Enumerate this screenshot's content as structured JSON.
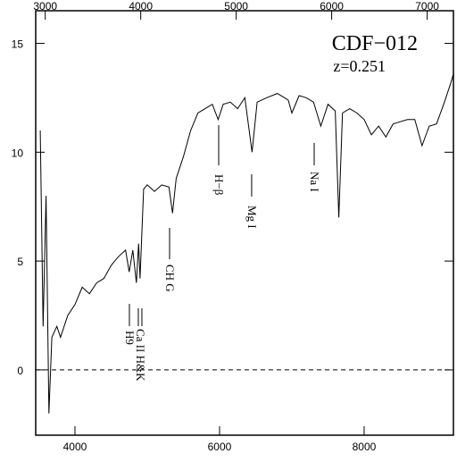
{
  "chart_data": {
    "type": "line",
    "title": "CDF−012",
    "subtitle": "z=0.251",
    "x": [
      3520,
      3560,
      3600,
      3640,
      3680,
      3750,
      3800,
      3900,
      4000,
      4100,
      4200,
      4300,
      4400,
      4500,
      4600,
      4700,
      4750,
      4800,
      4850,
      4880,
      4900,
      4950,
      5000,
      5100,
      5200,
      5300,
      5350,
      5400,
      5500,
      5600,
      5700,
      5800,
      5900,
      5980,
      6050,
      6150,
      6250,
      6350,
      6450,
      6520,
      6650,
      6800,
      6950,
      7000,
      7100,
      7200,
      7300,
      7400,
      7500,
      7600,
      7650,
      7700,
      7800,
      7900,
      8000,
      8100,
      8200,
      8300,
      8400,
      8500,
      8600,
      8700,
      8800,
      8900,
      9000,
      9100,
      9200,
      9235
    ],
    "series": [
      {
        "color": "#000000",
        "values": [
          11,
          2,
          8,
          -2,
          1.5,
          2,
          1.5,
          2.5,
          3,
          3.8,
          3.5,
          4,
          4.2,
          4.8,
          5.2,
          5.5,
          4.5,
          5.5,
          4,
          5.8,
          4.2,
          8.3,
          8.5,
          8.2,
          8.5,
          8.4,
          7.2,
          8.8,
          9.8,
          11,
          11.8,
          12,
          12.2,
          11.5,
          12.2,
          12.3,
          12,
          12.5,
          10,
          12.3,
          12.5,
          12.7,
          12.4,
          11.8,
          12.6,
          12.5,
          12.3,
          11.2,
          12.2,
          11.9,
          7,
          11.8,
          12,
          11.8,
          11.5,
          10.8,
          11.2,
          10.7,
          11.3,
          11.4,
          11.5,
          11.5,
          10.3,
          11.2,
          11.3,
          12.2,
          13.2,
          13.6
        ]
      }
    ],
    "xlim": [
      3457,
      9235
    ],
    "xticks": [
      4000,
      6000,
      8000
    ],
    "x2lim": [
      2900,
      7275
    ],
    "x2ticks": [
      3000,
      4000,
      5000,
      6000,
      7000
    ],
    "ylim": [
      -3,
      16.5
    ],
    "yticks": [
      0,
      5,
      10,
      15
    ],
    "reference_line": 0,
    "annotations": [
      {
        "text": "H9",
        "x": 4753
      },
      {
        "text": "Ca II H&K",
        "x": 4901
      },
      {
        "text": "CH G",
        "x": 5309
      },
      {
        "text": "H−β",
        "x": 5988
      },
      {
        "text": "Mg I",
        "x": 6444
      },
      {
        "text": "Na I",
        "x": 7309
      }
    ]
  }
}
